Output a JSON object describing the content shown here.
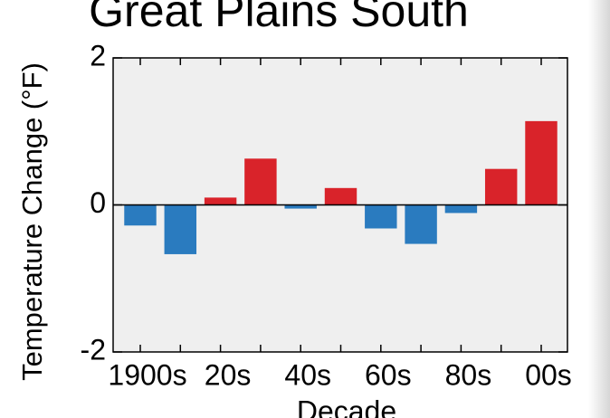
{
  "chart_data": {
    "type": "bar",
    "title": "Great Plains South",
    "x_label": "Decade",
    "y_label": "Temperature Change (°F)",
    "categories": [
      "1900s",
      null,
      "20s",
      null,
      "40s",
      null,
      "60s",
      null,
      "80s",
      null,
      "00s"
    ],
    "values": [
      -0.28,
      -0.67,
      0.1,
      0.63,
      -0.05,
      0.23,
      -0.32,
      -0.53,
      -0.11,
      0.49,
      1.14
    ],
    "positive_color": "#d9232a",
    "negative_color": "#2a7bbf",
    "ylim": [
      -2,
      2
    ],
    "yticks": [
      -2,
      0,
      2
    ]
  }
}
